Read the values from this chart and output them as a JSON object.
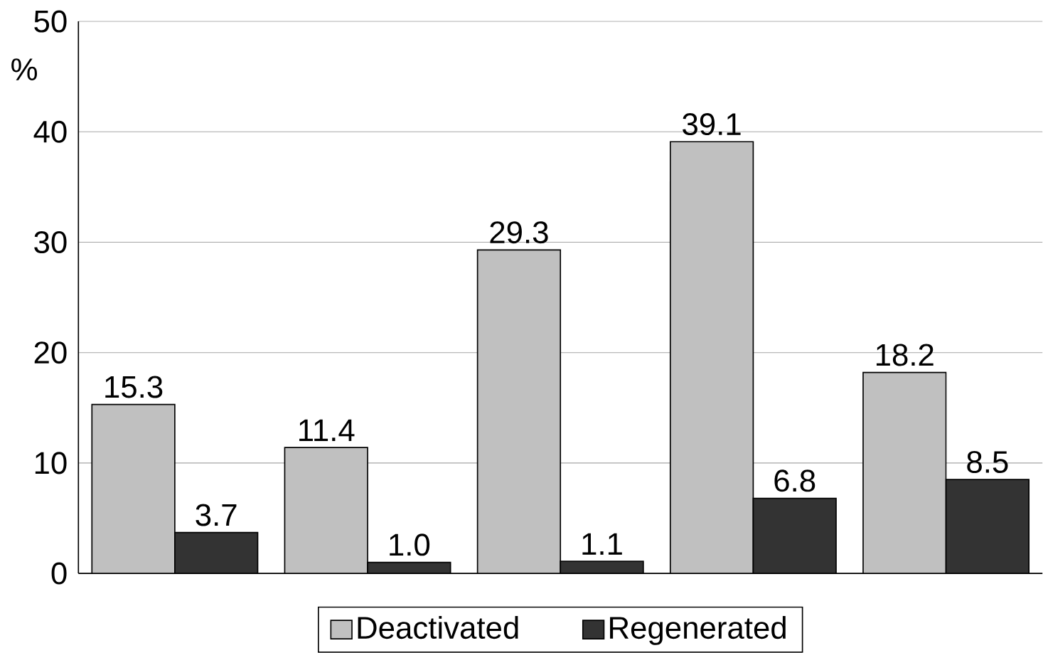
{
  "chart_data": {
    "type": "bar",
    "ylabel": "%",
    "categories": [
      null,
      null,
      null,
      null,
      null
    ],
    "series": [
      {
        "name": "Deactivated",
        "color": "#c0c0c0",
        "values": [
          15.3,
          11.4,
          29.3,
          39.1,
          18.2
        ],
        "value_labels": [
          "15.3",
          "11.4",
          "29.3",
          "39.1",
          "18.2"
        ]
      },
      {
        "name": "Regenerated",
        "color": "#333333",
        "values": [
          3.7,
          1.0,
          1.1,
          6.8,
          8.5
        ],
        "value_labels": [
          "3.7",
          "1.0",
          "1.1",
          "6.8",
          "8.5"
        ]
      }
    ],
    "ylim": [
      0,
      50
    ],
    "yticks": [
      0,
      10,
      20,
      30,
      40,
      50
    ],
    "grid": "y",
    "legend": "bottom"
  }
}
